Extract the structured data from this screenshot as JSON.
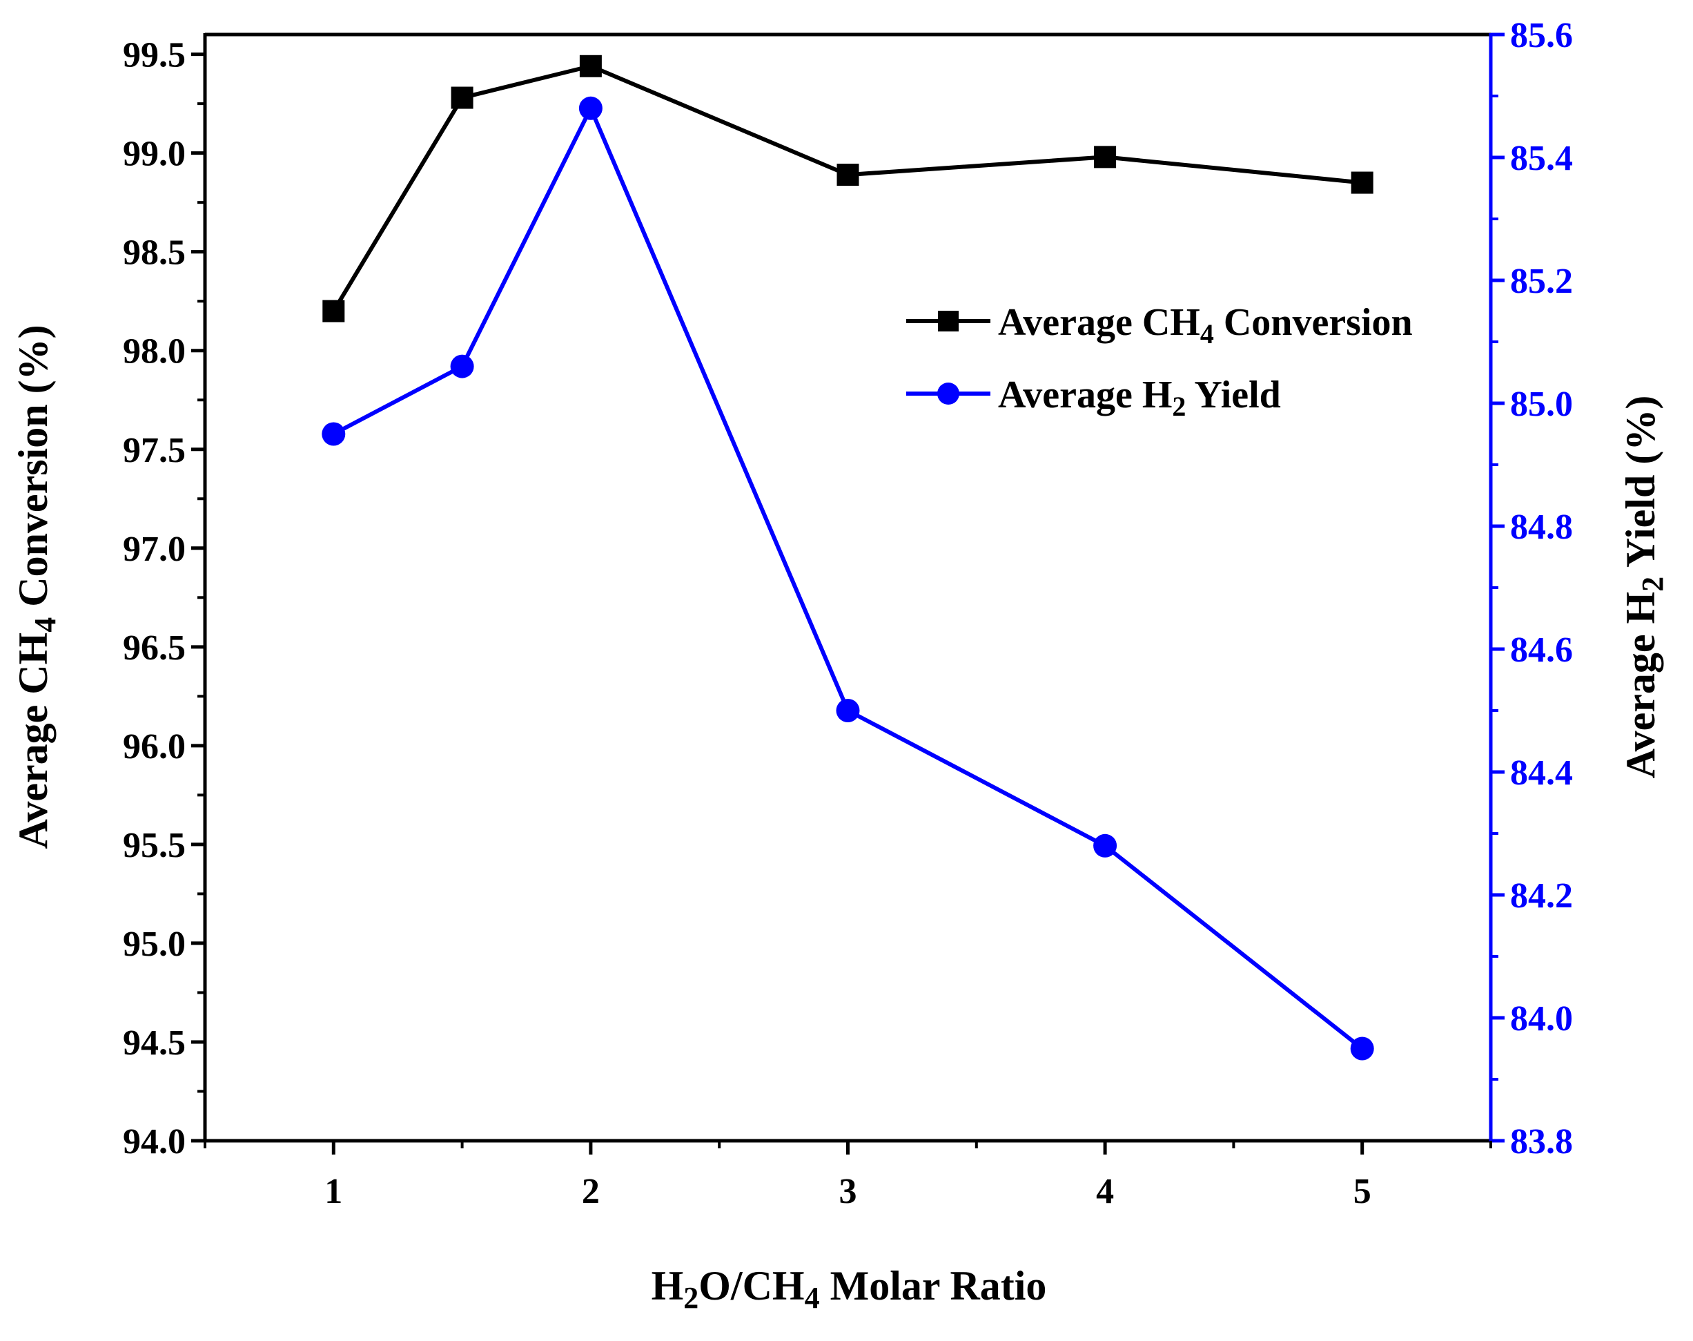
{
  "chart_data": {
    "type": "line",
    "title": "",
    "x": [
      1,
      1.5,
      2,
      3,
      4,
      5
    ],
    "xlim": [
      0.5,
      5.5
    ],
    "xticks": [
      1,
      2,
      3,
      4,
      5
    ],
    "xtick_labels": [
      "1",
      "2",
      "3",
      "4",
      "5"
    ],
    "xlabel": {
      "p1": "H",
      "s1": "2",
      "p2": "O/CH",
      "s2": "4",
      "p3": " Molar Ratio"
    },
    "ylabel_left": {
      "p1": "Average CH",
      "s1": "4",
      "p2": " Conversion (%)"
    },
    "ylabel_right": {
      "p1": "Average H",
      "s1": "2",
      "p2": " Yield (%)"
    },
    "ylim_left": [
      94.0,
      99.6
    ],
    "yticks_left": [
      "94.0",
      "94.5",
      "95.0",
      "95.5",
      "96.0",
      "96.5",
      "97.0",
      "97.5",
      "98.0",
      "98.5",
      "99.0",
      "99.5"
    ],
    "ylim_right": [
      83.8,
      85.6
    ],
    "yticks_right": [
      "83.8",
      "84.0",
      "84.2",
      "84.4",
      "84.6",
      "84.8",
      "85.0",
      "85.2",
      "85.4",
      "85.6"
    ],
    "series": [
      {
        "name": {
          "p1": "Average CH",
          "s1": "4",
          "p2": " Conversion"
        },
        "axis": "left",
        "marker": "square",
        "color": "#000000",
        "values": [
          98.2,
          99.28,
          99.44,
          98.89,
          98.98,
          98.85
        ]
      },
      {
        "name": {
          "p1": "Average H",
          "s1": "2",
          "p2": " Yield"
        },
        "axis": "right",
        "marker": "circle",
        "color": "#0000ff",
        "values": [
          84.95,
          85.06,
          85.48,
          84.5,
          84.28,
          83.95
        ]
      }
    ],
    "legend": "upper-right",
    "grid": false
  }
}
